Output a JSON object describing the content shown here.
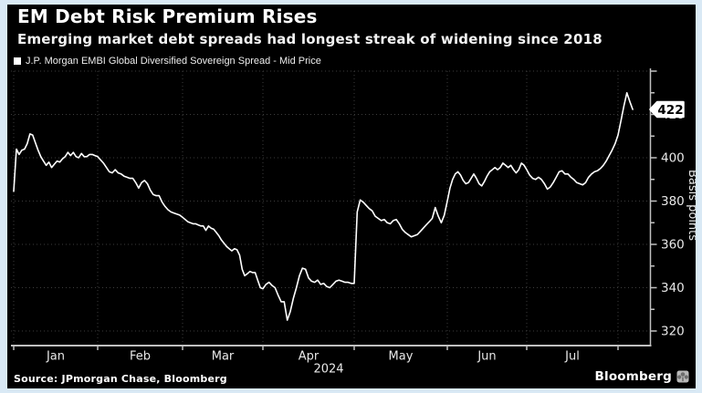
{
  "header": {
    "title": "EM Debt Risk Premium Rises",
    "subtitle": "Emerging market debt spreads had longest streak of widening since 2018",
    "legend_label": "J.P. Morgan EMBI Global Diversified Sovereign Spread - Mid Price"
  },
  "footer": {
    "source": "Source: JPmorgan Chase, Bloomberg",
    "brand": "Bloomberg",
    "brand_icon": "bloomberg-terminal-icon"
  },
  "colors": {
    "background": "#d9e9f5",
    "panel": "#000000",
    "line": "#ffffff",
    "grid": "#3d3d3d",
    "axis": "#c0c0c0",
    "tick_text": "#e8e8e8",
    "tag_bg": "#ffffff",
    "tag_text": "#000000"
  },
  "chart_data": {
    "type": "line",
    "title": "EM Debt Risk Premium Rises",
    "subtitle": "Emerging market debt spreads had longest streak of widening since 2018",
    "xlabel": "",
    "ylabel": "Basis points",
    "x_year_label": "2024",
    "x_tick_labels": [
      "Jan",
      "Feb",
      "Mar",
      "Apr",
      "May",
      "Jun",
      "Jul"
    ],
    "y_ticks": [
      320,
      340,
      360,
      380,
      400,
      420
    ],
    "ylim": [
      313,
      442
    ],
    "grid": "dotted",
    "legend_position": "top-left",
    "last_price_label": "422",
    "series": [
      {
        "name": "J.P. Morgan EMBI Global Diversified Sovereign Spread - Mid Price",
        "year": 2024,
        "points": [
          [
            "01-01",
            384.5
          ],
          [
            "01-02",
            404
          ],
          [
            "01-03",
            401.5
          ],
          [
            "01-04",
            403.5
          ],
          [
            "01-05",
            404
          ],
          [
            "01-06",
            406.5
          ],
          [
            "01-07",
            411
          ],
          [
            "01-08",
            410.5
          ],
          [
            "01-09",
            407
          ],
          [
            "01-10",
            403.5
          ],
          [
            "01-11",
            400.5
          ],
          [
            "01-12",
            398.5
          ],
          [
            "01-13",
            396.5
          ],
          [
            "01-14",
            398
          ],
          [
            "01-15",
            395.5
          ],
          [
            "01-16",
            397
          ],
          [
            "01-17",
            398.5
          ],
          [
            "01-18",
            398
          ],
          [
            "01-19",
            399.5
          ],
          [
            "01-20",
            400.5
          ],
          [
            "01-21",
            402.5
          ],
          [
            "01-22",
            401
          ],
          [
            "01-23",
            402.5
          ],
          [
            "01-24",
            400.5
          ],
          [
            "01-25",
            400
          ],
          [
            "01-26",
            402
          ],
          [
            "01-27",
            400.5
          ],
          [
            "01-28",
            400.5
          ],
          [
            "01-29",
            401.5
          ],
          [
            "01-30",
            401.5
          ],
          [
            "01-31",
            401
          ],
          [
            "02-01",
            400.5
          ],
          [
            "02-02",
            399
          ],
          [
            "02-03",
            397.5
          ],
          [
            "02-04",
            395.5
          ],
          [
            "02-05",
            393.5
          ],
          [
            "02-06",
            393
          ],
          [
            "02-07",
            394.5
          ],
          [
            "02-08",
            393
          ],
          [
            "02-09",
            392.5
          ],
          [
            "02-10",
            391.5
          ],
          [
            "02-11",
            391
          ],
          [
            "02-12",
            390.5
          ],
          [
            "02-13",
            390.5
          ],
          [
            "02-14",
            388.5
          ],
          [
            "02-15",
            386
          ],
          [
            "02-16",
            388.5
          ],
          [
            "02-17",
            389.5
          ],
          [
            "02-18",
            388
          ],
          [
            "02-19",
            385
          ],
          [
            "02-20",
            383
          ],
          [
            "02-21",
            382.5
          ],
          [
            "02-22",
            382.5
          ],
          [
            "02-23",
            379.5
          ],
          [
            "02-24",
            377.5
          ],
          [
            "02-25",
            376
          ],
          [
            "02-26",
            375
          ],
          [
            "02-27",
            374.5
          ],
          [
            "02-28",
            374
          ],
          [
            "02-29",
            373.5
          ],
          [
            "03-01",
            372.5
          ],
          [
            "03-02",
            371.5
          ],
          [
            "03-03",
            370.5
          ],
          [
            "03-04",
            370
          ],
          [
            "03-05",
            369.5
          ],
          [
            "03-06",
            369.5
          ],
          [
            "03-07",
            369
          ],
          [
            "03-08",
            368.5
          ],
          [
            "03-09",
            368.5
          ],
          [
            "03-10",
            366.5
          ],
          [
            "03-11",
            368.5
          ],
          [
            "03-12",
            367.5
          ],
          [
            "03-13",
            367
          ],
          [
            "03-14",
            365.5
          ],
          [
            "03-15",
            364
          ],
          [
            "03-16",
            362
          ],
          [
            "03-17",
            360.5
          ],
          [
            "03-18",
            359
          ],
          [
            "03-19",
            358
          ],
          [
            "03-20",
            357
          ],
          [
            "03-21",
            358
          ],
          [
            "03-22",
            357.5
          ],
          [
            "03-23",
            355
          ],
          [
            "03-24",
            348.5
          ],
          [
            "03-25",
            345.5
          ],
          [
            "03-26",
            346.5
          ],
          [
            "03-27",
            347.5
          ],
          [
            "03-28",
            347
          ],
          [
            "03-29",
            347
          ],
          [
            "03-30",
            343.5
          ],
          [
            "03-31",
            340
          ],
          [
            "04-01",
            339.5
          ],
          [
            "04-02",
            341.5
          ],
          [
            "04-03",
            342.5
          ],
          [
            "04-04",
            341
          ],
          [
            "04-05",
            340
          ],
          [
            "04-06",
            336.5
          ],
          [
            "04-07",
            333.5
          ],
          [
            "04-08",
            333.5
          ],
          [
            "04-09",
            325
          ],
          [
            "04-10",
            329
          ],
          [
            "04-11",
            335
          ],
          [
            "04-12",
            340
          ],
          [
            "04-13",
            345.5
          ],
          [
            "04-14",
            349
          ],
          [
            "04-15",
            348.5
          ],
          [
            "04-16",
            344.5
          ],
          [
            "04-17",
            343
          ],
          [
            "04-18",
            342.5
          ],
          [
            "04-19",
            343.5
          ],
          [
            "04-20",
            341.5
          ],
          [
            "04-21",
            342
          ],
          [
            "04-22",
            340.5
          ],
          [
            "04-23",
            340
          ],
          [
            "04-24",
            341.5
          ],
          [
            "04-25",
            343
          ],
          [
            "04-26",
            343.5
          ],
          [
            "04-27",
            343
          ],
          [
            "04-28",
            342.5
          ],
          [
            "04-29",
            342.5
          ],
          [
            "04-30",
            342
          ],
          [
            "05-01",
            342
          ],
          [
            "05-02",
            375
          ],
          [
            "05-03",
            380.5
          ],
          [
            "05-04",
            379.5
          ],
          [
            "05-05",
            378
          ],
          [
            "05-06",
            376.5
          ],
          [
            "05-07",
            375.5
          ],
          [
            "05-08",
            373
          ],
          [
            "05-09",
            372
          ],
          [
            "05-10",
            371
          ],
          [
            "05-11",
            371.5
          ],
          [
            "05-12",
            370
          ],
          [
            "05-13",
            369.5
          ],
          [
            "05-14",
            371
          ],
          [
            "05-15",
            371.5
          ],
          [
            "05-16",
            369.5
          ],
          [
            "05-17",
            367
          ],
          [
            "05-18",
            365.5
          ],
          [
            "05-19",
            364.5
          ],
          [
            "05-20",
            363.5
          ],
          [
            "05-21",
            364
          ],
          [
            "05-22",
            364.5
          ],
          [
            "05-23",
            366
          ],
          [
            "05-24",
            367.5
          ],
          [
            "05-25",
            369
          ],
          [
            "05-26",
            370.5
          ],
          [
            "05-27",
            372
          ],
          [
            "05-28",
            377
          ],
          [
            "05-29",
            373
          ],
          [
            "05-30",
            370
          ],
          [
            "05-31",
            373.5
          ],
          [
            "06-01",
            380
          ],
          [
            "06-02",
            386
          ],
          [
            "06-03",
            390
          ],
          [
            "06-04",
            392.5
          ],
          [
            "06-05",
            393.5
          ],
          [
            "06-06",
            392
          ],
          [
            "06-07",
            389.5
          ],
          [
            "06-08",
            388
          ],
          [
            "06-09",
            388.5
          ],
          [
            "06-10",
            390.5
          ],
          [
            "06-11",
            392.5
          ],
          [
            "06-12",
            390.5
          ],
          [
            "06-13",
            388
          ],
          [
            "06-14",
            387
          ],
          [
            "06-15",
            389
          ],
          [
            "06-16",
            391.5
          ],
          [
            "06-17",
            393.5
          ],
          [
            "06-18",
            394.5
          ],
          [
            "06-19",
            395.5
          ],
          [
            "06-20",
            394.5
          ],
          [
            "06-21",
            395.5
          ],
          [
            "06-22",
            397.5
          ],
          [
            "06-23",
            396.5
          ],
          [
            "06-24",
            395.5
          ],
          [
            "06-25",
            396.5
          ],
          [
            "06-26",
            394.5
          ],
          [
            "06-27",
            393
          ],
          [
            "06-28",
            394.5
          ],
          [
            "06-29",
            397.5
          ],
          [
            "06-30",
            396.5
          ],
          [
            "07-01",
            394.5
          ],
          [
            "07-02",
            392
          ],
          [
            "07-03",
            390.5
          ],
          [
            "07-04",
            390
          ],
          [
            "07-05",
            391
          ],
          [
            "07-06",
            390
          ],
          [
            "07-07",
            388
          ],
          [
            "07-08",
            385.5
          ],
          [
            "07-09",
            386.5
          ],
          [
            "07-10",
            388.5
          ],
          [
            "07-11",
            391
          ],
          [
            "07-12",
            393.5
          ],
          [
            "07-13",
            394
          ],
          [
            "07-14",
            392.5
          ],
          [
            "07-15",
            392.5
          ],
          [
            "07-16",
            391
          ],
          [
            "07-17",
            390
          ],
          [
            "07-18",
            388.5
          ],
          [
            "07-19",
            388
          ],
          [
            "07-20",
            387.5
          ],
          [
            "07-21",
            388.5
          ],
          [
            "07-22",
            391
          ],
          [
            "07-23",
            392.5
          ],
          [
            "07-24",
            393.5
          ],
          [
            "07-25",
            394
          ],
          [
            "07-26",
            395
          ],
          [
            "07-27",
            396.5
          ],
          [
            "07-28",
            398.5
          ],
          [
            "07-29",
            401
          ],
          [
            "07-30",
            403.5
          ],
          [
            "07-31",
            406.5
          ],
          [
            "08-01",
            410.5
          ],
          [
            "08-02",
            417
          ],
          [
            "08-03",
            424
          ],
          [
            "08-04",
            430
          ],
          [
            "08-05",
            426
          ],
          [
            "08-06",
            422.3
          ]
        ]
      }
    ]
  }
}
